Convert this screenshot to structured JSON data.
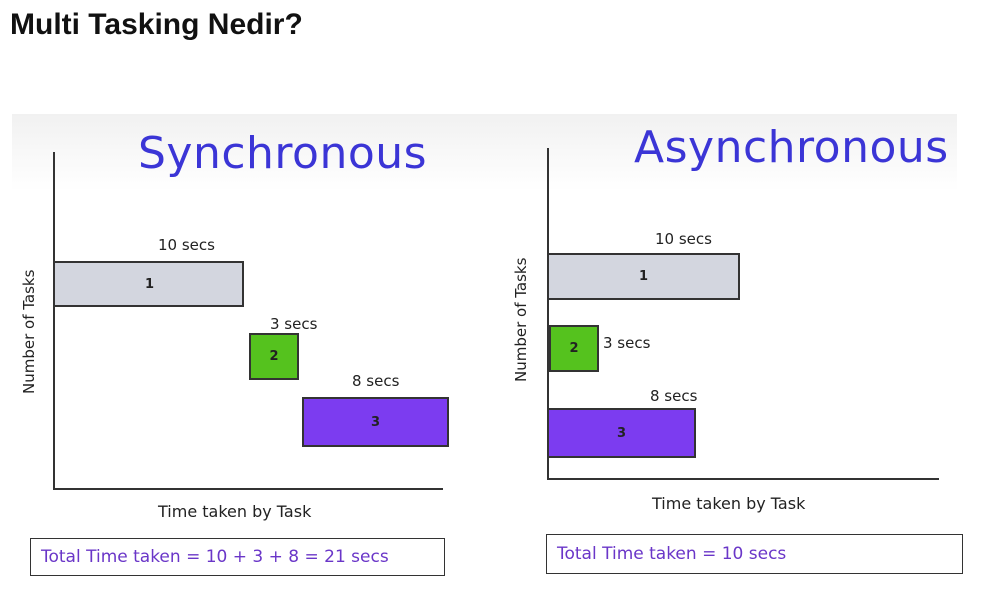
{
  "title": "Multi Tasking Nedir?",
  "colors": {
    "heading": "#3b35d6",
    "task1": "#d3d6df",
    "task2": "#55c21e",
    "task3": "#7c3cf0",
    "total_text": "#6a36c8"
  },
  "diagrams": [
    {
      "title": "Synchronous",
      "y_label": "Number of Tasks",
      "x_label": "Time taken by Task",
      "total": "Total Time taken = 10 + 3 + 8 = 21 secs",
      "tasks": [
        {
          "label": "1",
          "duration": "10 secs",
          "seconds": 10,
          "start": 0
        },
        {
          "label": "2",
          "duration": "3 secs",
          "seconds": 3,
          "start": 10
        },
        {
          "label": "3",
          "duration": "8 secs",
          "seconds": 8,
          "start": 13
        }
      ]
    },
    {
      "title": "Asynchronous",
      "y_label": "Number of Tasks",
      "x_label": "Time taken by Task",
      "total": "Total Time taken = 10 secs",
      "tasks": [
        {
          "label": "1",
          "duration": "10 secs",
          "seconds": 10,
          "start": 0
        },
        {
          "label": "2",
          "duration": "3 secs",
          "seconds": 3,
          "start": 0
        },
        {
          "label": "3",
          "duration": "8 secs",
          "seconds": 8,
          "start": 0
        }
      ]
    }
  ]
}
